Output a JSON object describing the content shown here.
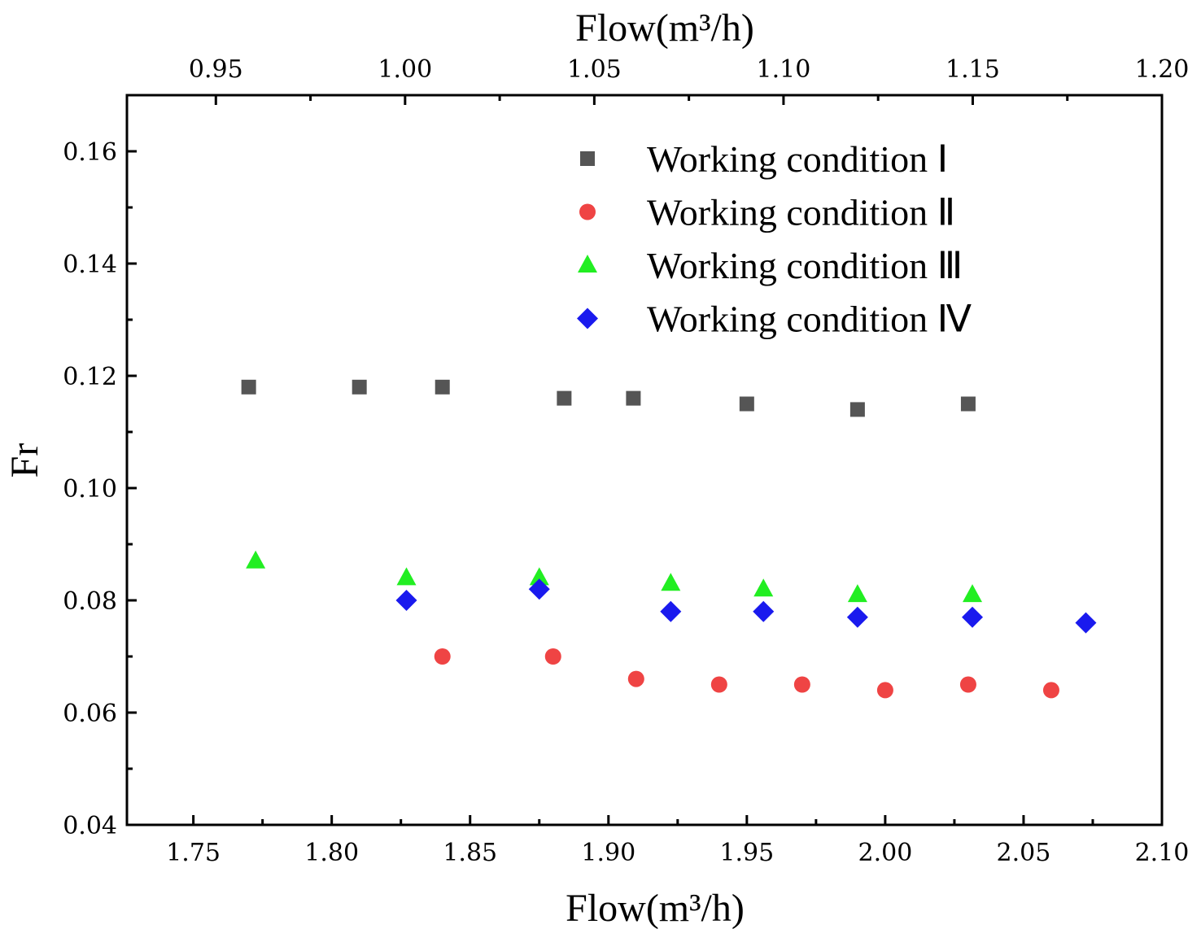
{
  "chart_data": {
    "type": "scatter",
    "ylabel": "Fr",
    "xlabel_bottom": "Flow(m³/h)",
    "xlabel_top": "Flow(m³/h)",
    "x_bottom_lim": [
      1.726,
      2.1
    ],
    "x_top_lim": [
      0.9265,
      1.2
    ],
    "ylim": [
      0.04,
      0.17
    ],
    "x_bottom_ticks": [
      "1.75",
      "1.80",
      "1.85",
      "1.90",
      "1.95",
      "2.00",
      "2.05",
      "2.10"
    ],
    "x_bottom_tick_values": [
      1.75,
      1.8,
      1.85,
      1.9,
      1.95,
      2.0,
      2.05,
      2.1
    ],
    "x_top_ticks": [
      "0.95",
      "1.00",
      "1.05",
      "1.10",
      "1.15",
      "1.20"
    ],
    "x_top_tick_values": [
      0.95,
      1.0,
      1.05,
      1.1,
      1.15,
      1.2
    ],
    "y_ticks": [
      "0.04",
      "0.06",
      "0.08",
      "0.10",
      "0.12",
      "0.14",
      "0.16"
    ],
    "y_tick_values": [
      0.04,
      0.06,
      0.08,
      0.1,
      0.12,
      0.14,
      0.16
    ],
    "legend_position": "top-right",
    "series": [
      {
        "name": "Working condition Ⅰ",
        "marker": "square",
        "color": "#555555",
        "points": [
          [
            1.77,
            0.118
          ],
          [
            1.81,
            0.118
          ],
          [
            1.84,
            0.118
          ],
          [
            1.884,
            0.116
          ],
          [
            1.909,
            0.116
          ],
          [
            1.95,
            0.115
          ],
          [
            1.99,
            0.114
          ],
          [
            2.03,
            0.115
          ]
        ]
      },
      {
        "name": "Working condition Ⅱ",
        "marker": "circle",
        "color": "#ef4444",
        "points": [
          [
            1.84,
            0.07
          ],
          [
            1.88,
            0.07
          ],
          [
            1.91,
            0.066
          ],
          [
            1.94,
            0.065
          ],
          [
            1.97,
            0.065
          ],
          [
            2.0,
            0.064
          ],
          [
            2.03,
            0.065
          ],
          [
            2.06,
            0.064
          ]
        ]
      },
      {
        "name": "Working condition Ⅲ",
        "marker": "triangle",
        "color": "#22ee22",
        "points": [
          [
            1.7725,
            0.087
          ],
          [
            1.827,
            0.084
          ],
          [
            1.875,
            0.084
          ],
          [
            1.9225,
            0.083
          ],
          [
            1.956,
            0.082
          ],
          [
            1.99,
            0.081
          ],
          [
            2.0315,
            0.081
          ]
        ]
      },
      {
        "name": "Working condition Ⅳ",
        "marker": "diamond",
        "color": "#1a1aee",
        "points": [
          [
            1.827,
            0.08
          ],
          [
            1.875,
            0.082
          ],
          [
            1.9225,
            0.078
          ],
          [
            1.956,
            0.078
          ],
          [
            1.99,
            0.077
          ],
          [
            2.0315,
            0.077
          ],
          [
            2.0725,
            0.076
          ]
        ]
      }
    ]
  }
}
